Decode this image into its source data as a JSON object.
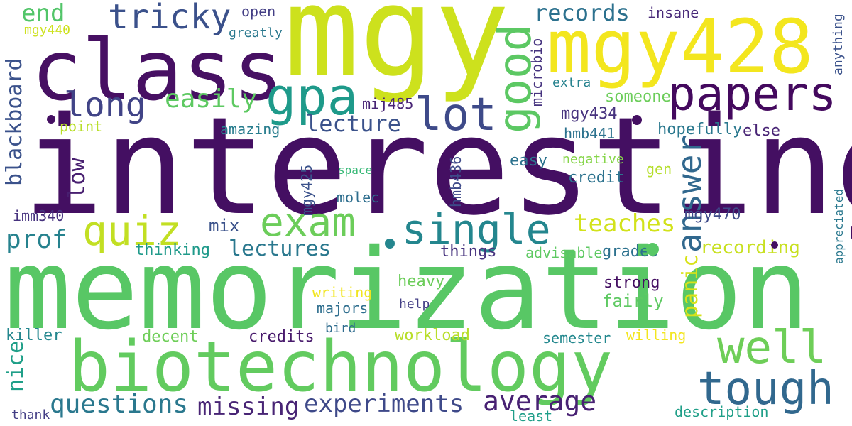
{
  "words": [
    {
      "text": "interesting",
      "color": "#440f62"
    },
    {
      "text": "memorization",
      "color": "#58c765"
    },
    {
      "text": "mgy",
      "color": "#cde11d"
    },
    {
      "text": "class",
      "color": "#471063"
    },
    {
      "text": "mgy428",
      "color": "#f3e61e"
    },
    {
      "text": "biotechnology",
      "color": "#62cb5f"
    },
    {
      "text": "papers",
      "color": "#44095e"
    },
    {
      "text": "gpa",
      "color": "#1e9a8a"
    },
    {
      "text": "lot",
      "color": "#3e4a89"
    },
    {
      "text": "good",
      "color": "#5cc863"
    },
    {
      "text": "tough",
      "color": "#31688e"
    },
    {
      "text": "well",
      "color": "#6ece58"
    },
    {
      "text": "single",
      "color": "#24868e"
    },
    {
      "text": "exam",
      "color": "#6ccd5a"
    },
    {
      "text": "quiz",
      "color": "#c2df23"
    },
    {
      "text": "tricky",
      "color": "#3b518b"
    },
    {
      "text": "long",
      "color": "#414487"
    },
    {
      "text": "answer",
      "color": "#31688e"
    },
    {
      "text": "average",
      "color": "#482173"
    },
    {
      "text": "questions",
      "color": "#2a788e"
    },
    {
      "text": "missing",
      "color": "#482475"
    },
    {
      "text": "experiments",
      "color": "#3e4989"
    },
    {
      "text": "end",
      "color": "#52c569"
    },
    {
      "text": "records",
      "color": "#2c718e"
    },
    {
      "text": "easily",
      "color": "#5ec962"
    },
    {
      "text": "lecture",
      "color": "#3b528b"
    },
    {
      "text": "blackboard",
      "color": "#3b528b"
    },
    {
      "text": "low",
      "color": "#481f70"
    },
    {
      "text": "prof",
      "color": "#26828e"
    },
    {
      "text": "lectures",
      "color": "#2a788e"
    },
    {
      "text": "teaches",
      "color": "#d2e21b"
    },
    {
      "text": "panic",
      "color": "#d8e219"
    },
    {
      "text": "recording",
      "color": "#c8e020"
    },
    {
      "text": "nice",
      "color": "#1f9f88"
    },
    {
      "text": "open",
      "color": "#433e85"
    },
    {
      "text": "insane",
      "color": "#482979"
    },
    {
      "text": "greatly",
      "color": "#2a788e"
    },
    {
      "text": "mgy440",
      "color": "#cde11d"
    },
    {
      "text": "microbio",
      "color": "#46337f"
    },
    {
      "text": "anything",
      "color": "#3b528b"
    },
    {
      "text": "extra",
      "color": "#26828e"
    },
    {
      "text": "someone",
      "color": "#6ccd5a"
    },
    {
      "text": "mij485",
      "color": "#482475"
    },
    {
      "text": "mgy434",
      "color": "#46327e"
    },
    {
      "text": "point",
      "color": "#b8de29"
    },
    {
      "text": "amazing",
      "color": "#287d8e"
    },
    {
      "text": "hmb441",
      "color": "#2c728e"
    },
    {
      "text": "hopefully",
      "color": "#2a788e"
    },
    {
      "text": "else",
      "color": "#482475"
    },
    {
      "text": "mgy425",
      "color": "#3b528b"
    },
    {
      "text": "hmb436",
      "color": "#3e4a89"
    },
    {
      "text": "easy",
      "color": "#2c728e"
    },
    {
      "text": "negative",
      "color": "#86d549"
    },
    {
      "text": "space",
      "color": "#38b977"
    },
    {
      "text": "molec",
      "color": "#2e6e8e"
    },
    {
      "text": "credit",
      "color": "#2c728e"
    },
    {
      "text": "gen",
      "color": "#b5de2b"
    },
    {
      "text": "appreciated",
      "color": "#2a788e"
    },
    {
      "text": "imm340",
      "color": "#46327e"
    },
    {
      "text": "mix",
      "color": "#3b528b"
    },
    {
      "text": "mgy470",
      "color": "#3e4a89"
    },
    {
      "text": "thinking",
      "color": "#1f9a8a"
    },
    {
      "text": "things",
      "color": "#46327e"
    },
    {
      "text": "advisable",
      "color": "#5ec962"
    },
    {
      "text": "grades",
      "color": "#2c718e"
    },
    {
      "text": "heavy",
      "color": "#6ccd5a"
    },
    {
      "text": "writing",
      "color": "#f1e51d"
    },
    {
      "text": "strong",
      "color": "#440f62"
    },
    {
      "text": "majors",
      "color": "#2e6e8e"
    },
    {
      "text": "fairly",
      "color": "#5ec962"
    },
    {
      "text": "help",
      "color": "#433e85"
    },
    {
      "text": "killer",
      "color": "#24878e"
    },
    {
      "text": "decent",
      "color": "#6ece58"
    },
    {
      "text": "credits",
      "color": "#481a6c"
    },
    {
      "text": "bird",
      "color": "#2f6c8e"
    },
    {
      "text": "workload",
      "color": "#b8de29"
    },
    {
      "text": "semester",
      "color": "#23888e"
    },
    {
      "text": "willing",
      "color": "#f3e61e"
    },
    {
      "text": "thank",
      "color": "#433e85"
    },
    {
      "text": "least",
      "color": "#1f9e89"
    },
    {
      "text": "description",
      "color": "#1f9f88"
    }
  ]
}
